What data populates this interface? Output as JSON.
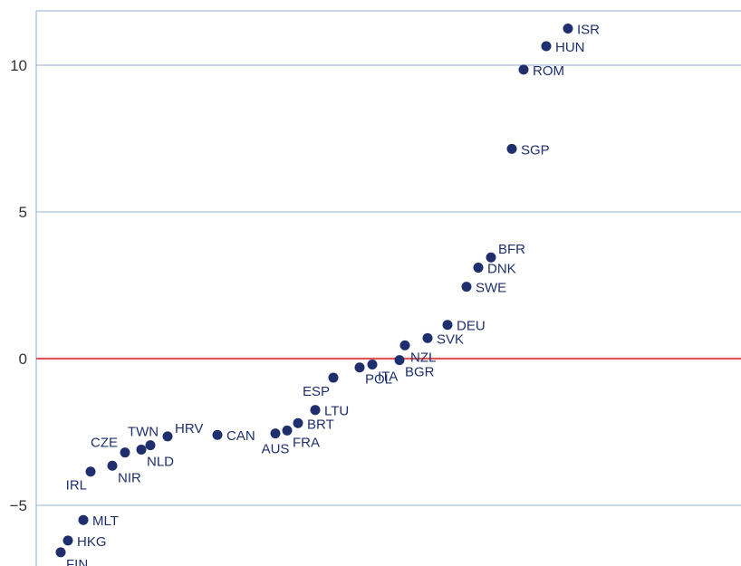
{
  "chart_data": {
    "type": "scatter",
    "title": "",
    "xlabel": "",
    "ylabel": "",
    "ylim": [
      -7,
      12
    ],
    "yticks": [
      -5,
      0,
      5,
      10
    ],
    "ytick_labels": [
      "−5",
      "0",
      "5",
      "10"
    ],
    "grid": "horizontal",
    "reference_line": {
      "y": 0,
      "color": "#e0555a"
    },
    "point_color": "#1f2f6e",
    "grid_color": "#8fb0d6",
    "x_axis_labeled": false,
    "points": [
      {
        "label": "FIN",
        "x": 1,
        "y": -6.6,
        "label_side": "below-right"
      },
      {
        "label": "HKG",
        "x": 2,
        "y": -6.2,
        "label_side": "right"
      },
      {
        "label": "MLT",
        "x": 3,
        "y": -5.5,
        "label_side": "right"
      },
      {
        "label": "IRL",
        "x": 4,
        "y": -3.85,
        "label_side": "below-left"
      },
      {
        "label": "NIR",
        "x": 5,
        "y": -3.65,
        "label_side": "below-right"
      },
      {
        "label": "CZE",
        "x": 6,
        "y": -3.2,
        "label_side": "above-left"
      },
      {
        "label": "NLD",
        "x": 7,
        "y": -3.1,
        "label_side": "below-right"
      },
      {
        "label": "TWN",
        "x": 8,
        "y": -2.95,
        "label_side": "above"
      },
      {
        "label": "HRV",
        "x": 9,
        "y": -2.65,
        "label_side": "above-right"
      },
      {
        "label": "CAN",
        "x": 10,
        "y": -2.6,
        "label_side": "right"
      },
      {
        "label": "AUS",
        "x": 11,
        "y": -2.55,
        "label_side": "below"
      },
      {
        "label": "FRA",
        "x": 12,
        "y": -2.45,
        "label_side": "below-right"
      },
      {
        "label": "BRT",
        "x": 13,
        "y": -2.2,
        "label_side": "right"
      },
      {
        "label": "LTU",
        "x": 14,
        "y": -1.75,
        "label_side": "right"
      },
      {
        "label": "ESP",
        "x": 15,
        "y": -0.65,
        "label_side": "below-left"
      },
      {
        "label": "POL",
        "x": 16,
        "y": -0.3,
        "label_side": "below-right"
      },
      {
        "label": "ITA",
        "x": 17,
        "y": -0.2,
        "label_side": "below-right"
      },
      {
        "label": "BGR",
        "x": 18,
        "y": -0.05,
        "label_side": "below-right"
      },
      {
        "label": "NZL",
        "x": 19,
        "y": 0.45,
        "label_side": "below-right"
      },
      {
        "label": "SVK",
        "x": 20,
        "y": 0.7,
        "label_side": "right"
      },
      {
        "label": "DEU",
        "x": 21,
        "y": 1.15,
        "label_side": "right"
      },
      {
        "label": "SWE",
        "x": 22,
        "y": 2.45,
        "label_side": "right"
      },
      {
        "label": "DNK",
        "x": 23,
        "y": 3.1,
        "label_side": "right"
      },
      {
        "label": "BFR",
        "x": 24,
        "y": 3.45,
        "label_side": "above-right"
      },
      {
        "label": "SGP",
        "x": 25,
        "y": 7.15,
        "label_side": "right"
      },
      {
        "label": "ROM",
        "x": 26,
        "y": 9.85,
        "label_side": "right"
      },
      {
        "label": "HUN",
        "x": 27,
        "y": 10.65,
        "label_side": "right"
      },
      {
        "label": "ISR",
        "x": 28,
        "y": 11.25,
        "label_side": "right"
      }
    ]
  }
}
